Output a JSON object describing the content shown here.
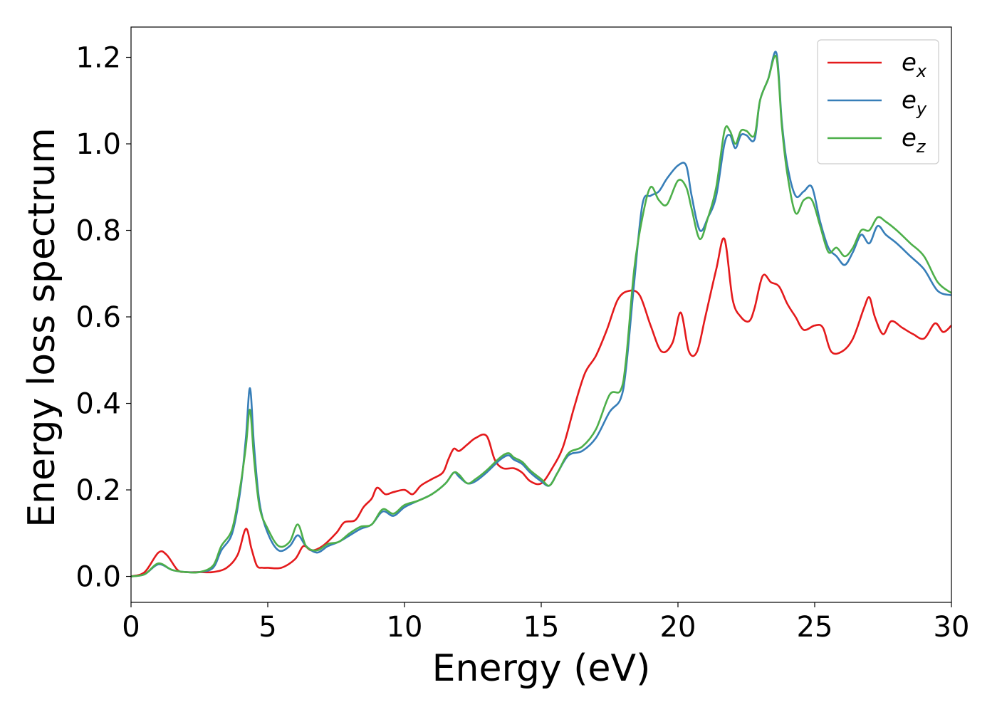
{
  "chart_data": {
    "type": "line",
    "title": "",
    "xlabel": "Energy (eV)",
    "ylabel": "Energy loss spectrum",
    "xlim": [
      0,
      30
    ],
    "ylim": [
      -0.06,
      1.27
    ],
    "xticks": [
      0,
      5,
      10,
      15,
      20,
      25,
      30
    ],
    "yticks": [
      0.0,
      0.2,
      0.4,
      0.6,
      0.8,
      1.0,
      1.2
    ],
    "xtick_labels": [
      "0",
      "5",
      "10",
      "15",
      "20",
      "25",
      "30"
    ],
    "ytick_labels": [
      "0.0",
      "0.2",
      "0.4",
      "0.6",
      "0.8",
      "1.0",
      "1.2"
    ],
    "grid": false,
    "legend_position": "top-right",
    "series": [
      {
        "name": "e_x",
        "label_base": "e",
        "label_sub": "x",
        "color": "#e41a1c",
        "x": [
          0,
          0.5,
          1.0,
          1.3,
          1.7,
          2.0,
          2.5,
          3.0,
          3.5,
          3.9,
          4.2,
          4.4,
          4.6,
          4.8,
          5.0,
          5.5,
          6.0,
          6.3,
          6.6,
          7.0,
          7.5,
          7.8,
          8.2,
          8.5,
          8.8,
          9.0,
          9.3,
          9.6,
          10.0,
          10.3,
          10.6,
          11.0,
          11.4,
          11.6,
          11.8,
          12.0,
          12.3,
          12.6,
          13.0,
          13.3,
          13.6,
          14.0,
          14.3,
          14.6,
          15.0,
          15.4,
          15.8,
          16.2,
          16.6,
          17.0,
          17.4,
          17.8,
          18.2,
          18.6,
          19.0,
          19.4,
          19.8,
          20.1,
          20.4,
          20.7,
          21.0,
          21.4,
          21.7,
          22.0,
          22.3,
          22.6,
          22.8,
          23.1,
          23.4,
          23.7,
          24.0,
          24.3,
          24.6,
          25.0,
          25.3,
          25.6,
          26.0,
          26.4,
          26.8,
          27.0,
          27.2,
          27.5,
          27.8,
          28.2,
          28.6,
          29.0,
          29.4,
          29.7,
          30.0
        ],
        "values": [
          0,
          0.01,
          0.055,
          0.05,
          0.015,
          0.01,
          0.01,
          0.01,
          0.02,
          0.05,
          0.11,
          0.065,
          0.025,
          0.02,
          0.02,
          0.02,
          0.04,
          0.07,
          0.06,
          0.07,
          0.1,
          0.125,
          0.13,
          0.16,
          0.18,
          0.205,
          0.19,
          0.195,
          0.2,
          0.19,
          0.21,
          0.225,
          0.24,
          0.27,
          0.295,
          0.29,
          0.305,
          0.32,
          0.325,
          0.27,
          0.25,
          0.25,
          0.24,
          0.22,
          0.215,
          0.25,
          0.3,
          0.39,
          0.47,
          0.51,
          0.57,
          0.64,
          0.66,
          0.65,
          0.58,
          0.52,
          0.54,
          0.61,
          0.52,
          0.52,
          0.6,
          0.71,
          0.78,
          0.64,
          0.6,
          0.59,
          0.62,
          0.695,
          0.68,
          0.67,
          0.63,
          0.6,
          0.57,
          0.58,
          0.575,
          0.52,
          0.52,
          0.55,
          0.62,
          0.645,
          0.6,
          0.56,
          0.59,
          0.575,
          0.56,
          0.55,
          0.585,
          0.565,
          0.58
        ]
      },
      {
        "name": "e_y",
        "label_base": "e",
        "label_sub": "y",
        "color": "#377eb8",
        "x": [
          0,
          0.5,
          1.0,
          1.5,
          2.0,
          2.5,
          3.0,
          3.3,
          3.7,
          4.0,
          4.2,
          4.35,
          4.5,
          4.7,
          5.0,
          5.4,
          5.8,
          6.1,
          6.4,
          6.8,
          7.2,
          7.6,
          8.0,
          8.4,
          8.8,
          9.2,
          9.6,
          10.0,
          10.5,
          11.0,
          11.5,
          11.8,
          12.0,
          12.3,
          12.6,
          13.0,
          13.5,
          13.8,
          14.0,
          14.3,
          14.6,
          15.0,
          15.3,
          15.6,
          16.0,
          16.5,
          17.0,
          17.5,
          17.9,
          18.1,
          18.4,
          18.7,
          19.0,
          19.3,
          19.6,
          20.0,
          20.3,
          20.5,
          20.8,
          21.1,
          21.4,
          21.7,
          21.9,
          22.1,
          22.3,
          22.5,
          22.8,
          23.0,
          23.3,
          23.6,
          23.8,
          24.0,
          24.3,
          24.6,
          24.9,
          25.2,
          25.5,
          25.8,
          26.1,
          26.4,
          26.7,
          27.0,
          27.3,
          27.6,
          28.0,
          28.5,
          29.0,
          29.5,
          30.0
        ],
        "values": [
          0,
          0.005,
          0.028,
          0.015,
          0.01,
          0.01,
          0.02,
          0.06,
          0.1,
          0.2,
          0.32,
          0.435,
          0.3,
          0.17,
          0.1,
          0.06,
          0.07,
          0.095,
          0.07,
          0.055,
          0.07,
          0.08,
          0.095,
          0.11,
          0.12,
          0.15,
          0.14,
          0.16,
          0.175,
          0.19,
          0.215,
          0.24,
          0.23,
          0.215,
          0.22,
          0.24,
          0.27,
          0.28,
          0.27,
          0.26,
          0.24,
          0.22,
          0.21,
          0.24,
          0.28,
          0.29,
          0.32,
          0.38,
          0.41,
          0.48,
          0.68,
          0.86,
          0.88,
          0.89,
          0.92,
          0.95,
          0.95,
          0.88,
          0.8,
          0.83,
          0.88,
          1.0,
          1.02,
          0.99,
          1.02,
          1.02,
          1.01,
          1.1,
          1.15,
          1.21,
          1.05,
          0.95,
          0.88,
          0.89,
          0.9,
          0.82,
          0.76,
          0.74,
          0.72,
          0.75,
          0.79,
          0.77,
          0.81,
          0.79,
          0.77,
          0.74,
          0.71,
          0.66,
          0.65
        ]
      },
      {
        "name": "e_z",
        "label_base": "e",
        "label_sub": "z",
        "color": "#4daf4a",
        "x": [
          0,
          0.5,
          1.0,
          1.5,
          2.0,
          2.5,
          3.0,
          3.3,
          3.7,
          4.0,
          4.2,
          4.35,
          4.5,
          4.7,
          5.0,
          5.4,
          5.8,
          6.1,
          6.4,
          6.8,
          7.2,
          7.6,
          8.0,
          8.4,
          8.8,
          9.2,
          9.6,
          10.0,
          10.5,
          11.0,
          11.5,
          11.8,
          12.0,
          12.3,
          12.6,
          13.0,
          13.5,
          13.8,
          14.0,
          14.3,
          14.6,
          15.0,
          15.3,
          15.6,
          16.0,
          16.5,
          17.0,
          17.5,
          17.9,
          18.1,
          18.4,
          18.7,
          19.0,
          19.3,
          19.6,
          20.0,
          20.3,
          20.5,
          20.8,
          21.1,
          21.4,
          21.7,
          21.9,
          22.1,
          22.3,
          22.5,
          22.8,
          23.0,
          23.3,
          23.6,
          23.8,
          24.0,
          24.3,
          24.6,
          24.9,
          25.2,
          25.5,
          25.8,
          26.1,
          26.4,
          26.7,
          27.0,
          27.3,
          27.6,
          28.0,
          28.5,
          29.0,
          29.5,
          30.0
        ],
        "values": [
          0,
          0.005,
          0.03,
          0.015,
          0.01,
          0.01,
          0.025,
          0.07,
          0.11,
          0.21,
          0.3,
          0.385,
          0.27,
          0.16,
          0.11,
          0.07,
          0.08,
          0.12,
          0.07,
          0.06,
          0.075,
          0.08,
          0.1,
          0.115,
          0.12,
          0.155,
          0.145,
          0.165,
          0.175,
          0.19,
          0.215,
          0.24,
          0.235,
          0.215,
          0.225,
          0.245,
          0.275,
          0.285,
          0.275,
          0.265,
          0.245,
          0.225,
          0.21,
          0.24,
          0.285,
          0.3,
          0.34,
          0.42,
          0.43,
          0.5,
          0.71,
          0.83,
          0.9,
          0.87,
          0.86,
          0.915,
          0.9,
          0.85,
          0.78,
          0.83,
          0.9,
          1.03,
          1.03,
          1.0,
          1.03,
          1.03,
          1.02,
          1.1,
          1.15,
          1.2,
          1.04,
          0.93,
          0.84,
          0.87,
          0.87,
          0.81,
          0.75,
          0.76,
          0.74,
          0.76,
          0.8,
          0.8,
          0.83,
          0.82,
          0.8,
          0.77,
          0.74,
          0.68,
          0.655
        ]
      }
    ]
  }
}
